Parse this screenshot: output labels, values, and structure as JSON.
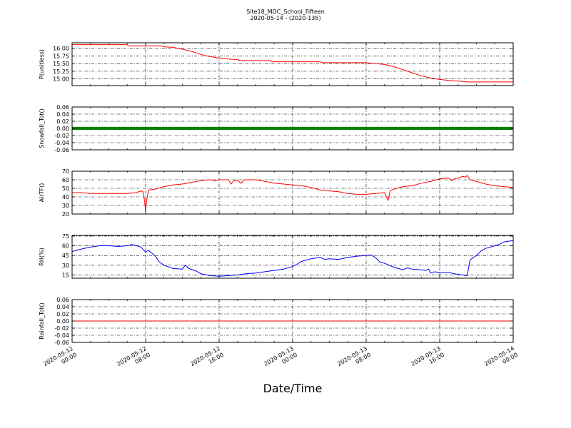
{
  "figure": {
    "title": "Site18_MDC_School_Fifteen",
    "subtitle": "2020-05-14 - (2020-135)",
    "xlabel": "Date/Time"
  },
  "chart_data": [
    {
      "type": "line",
      "ylabel": "P(unitless)",
      "color": "#ff0000",
      "xlim_hours": [
        0,
        48
      ],
      "ylim": [
        14.78,
        16.18
      ],
      "yticks": [
        15.0,
        15.25,
        15.5,
        15.75,
        16.0
      ],
      "ytick_labels": [
        "15.00",
        "15.25",
        "15.50",
        "15.75",
        "16.00"
      ],
      "points": [
        [
          0,
          16.12
        ],
        [
          6,
          16.12
        ],
        [
          6.1,
          16.08
        ],
        [
          9.7,
          16.08
        ],
        [
          10,
          16.05
        ],
        [
          11,
          16.03
        ],
        [
          12,
          15.97
        ],
        [
          13,
          15.9
        ],
        [
          14,
          15.8
        ],
        [
          15,
          15.73
        ],
        [
          16,
          15.68
        ],
        [
          17,
          15.65
        ],
        [
          18,
          15.63
        ],
        [
          18.3,
          15.6
        ],
        [
          21.5,
          15.6
        ],
        [
          21.8,
          15.56
        ],
        [
          27,
          15.56
        ],
        [
          27.3,
          15.53
        ],
        [
          32,
          15.53
        ],
        [
          33,
          15.5
        ],
        [
          34,
          15.47
        ],
        [
          35,
          15.4
        ],
        [
          36,
          15.3
        ],
        [
          37,
          15.2
        ],
        [
          38,
          15.1
        ],
        [
          39,
          15.03
        ],
        [
          40,
          14.98
        ],
        [
          41,
          14.95
        ],
        [
          42,
          14.93
        ],
        [
          43,
          14.9
        ],
        [
          48,
          14.9
        ]
      ]
    },
    {
      "type": "scatter",
      "ylabel": "Snowfall_Tot()",
      "color": "#008000",
      "xlim_hours": [
        0,
        48
      ],
      "ylim": [
        -0.06,
        0.06
      ],
      "yticks": [
        -0.06,
        -0.04,
        -0.02,
        0.0,
        0.02,
        0.04,
        0.06
      ],
      "ytick_labels": [
        "-0.06",
        "-0.04",
        "-0.02",
        "0.00",
        "0.02",
        "0.04",
        "0.06"
      ],
      "constant_value": 0.0,
      "x_step_hours": 0.1667
    },
    {
      "type": "line",
      "ylabel": "AirTF()",
      "color": "#ff0000",
      "xlim_hours": [
        0,
        48
      ],
      "ylim": [
        20,
        70
      ],
      "yticks": [
        20,
        30,
        40,
        50,
        60,
        70
      ],
      "ytick_labels": [
        "20",
        "30",
        "40",
        "50",
        "60",
        "70"
      ],
      "points": [
        [
          0,
          45
        ],
        [
          1,
          45
        ],
        [
          2,
          44
        ],
        [
          3,
          44
        ],
        [
          4,
          44
        ],
        [
          5,
          44
        ],
        [
          6,
          44
        ],
        [
          7,
          45
        ],
        [
          7.5,
          47
        ],
        [
          7.7,
          46
        ],
        [
          7.9,
          35
        ],
        [
          8,
          22
        ],
        [
          8.1,
          35
        ],
        [
          8.3,
          48
        ],
        [
          9,
          49
        ],
        [
          10,
          52
        ],
        [
          11,
          54
        ],
        [
          12,
          55
        ],
        [
          13,
          57
        ],
        [
          14,
          59
        ],
        [
          15,
          60
        ],
        [
          15.5,
          59
        ],
        [
          16,
          60
        ],
        [
          17,
          60
        ],
        [
          17.3,
          55
        ],
        [
          17.6,
          59
        ],
        [
          18,
          59
        ],
        [
          18.4,
          56
        ],
        [
          18.7,
          60
        ],
        [
          19,
          60
        ],
        [
          20,
          60
        ],
        [
          21,
          58
        ],
        [
          22,
          56
        ],
        [
          23,
          55
        ],
        [
          24,
          54
        ],
        [
          25,
          53
        ],
        [
          26,
          51
        ],
        [
          27,
          48
        ],
        [
          28,
          47
        ],
        [
          29,
          46
        ],
        [
          30,
          44
        ],
        [
          31,
          43
        ],
        [
          32,
          43
        ],
        [
          33,
          44
        ],
        [
          34,
          45
        ],
        [
          34.2,
          40
        ],
        [
          34.4,
          36
        ],
        [
          34.6,
          47
        ],
        [
          35,
          49
        ],
        [
          36,
          52
        ],
        [
          37,
          53
        ],
        [
          38,
          56
        ],
        [
          39,
          58
        ],
        [
          40,
          61
        ],
        [
          41,
          62
        ],
        [
          41.3,
          59
        ],
        [
          41.6,
          61
        ],
        [
          42,
          62
        ],
        [
          42.5,
          64
        ],
        [
          42.8,
          63
        ],
        [
          43,
          65
        ],
        [
          43.3,
          60
        ],
        [
          44,
          58
        ],
        [
          45,
          55
        ],
        [
          46,
          53
        ],
        [
          47,
          52
        ],
        [
          48,
          51
        ]
      ]
    },
    {
      "type": "line",
      "ylabel": "RH(%)",
      "color": "#0000ff",
      "xlim_hours": [
        0,
        48
      ],
      "ylim": [
        10,
        76
      ],
      "yticks": [
        15,
        30,
        45,
        60,
        75
      ],
      "ytick_labels": [
        "15",
        "30",
        "45",
        "60",
        "75"
      ],
      "points": [
        [
          0,
          51
        ],
        [
          1,
          55
        ],
        [
          2,
          58
        ],
        [
          3,
          60
        ],
        [
          4,
          60
        ],
        [
          5,
          59
        ],
        [
          6,
          60
        ],
        [
          6.5,
          62
        ],
        [
          7,
          60
        ],
        [
          7.5,
          58
        ],
        [
          8,
          50
        ],
        [
          8.3,
          53
        ],
        [
          9,
          45
        ],
        [
          9.5,
          35
        ],
        [
          10,
          30
        ],
        [
          11,
          25
        ],
        [
          12,
          24
        ],
        [
          12.3,
          30
        ],
        [
          12.7,
          25
        ],
        [
          13.5,
          21
        ],
        [
          14,
          17
        ],
        [
          15,
          14
        ],
        [
          16,
          13
        ],
        [
          17,
          14
        ],
        [
          18,
          15
        ],
        [
          19,
          17
        ],
        [
          20,
          18
        ],
        [
          21,
          20
        ],
        [
          22,
          22
        ],
        [
          23,
          24
        ],
        [
          24,
          28
        ],
        [
          24.5,
          32
        ],
        [
          25,
          36
        ],
        [
          26,
          40
        ],
        [
          27,
          42
        ],
        [
          27.5,
          39
        ],
        [
          28,
          40
        ],
        [
          29,
          39
        ],
        [
          30,
          42
        ],
        [
          31,
          44
        ],
        [
          32,
          45
        ],
        [
          32.5,
          46
        ],
        [
          33,
          42
        ],
        [
          33.5,
          35
        ],
        [
          34,
          33
        ],
        [
          35,
          27
        ],
        [
          35.5,
          25
        ],
        [
          36,
          23
        ],
        [
          36.5,
          26
        ],
        [
          37,
          24
        ],
        [
          38,
          23
        ],
        [
          38.5,
          22
        ],
        [
          38.8,
          24
        ],
        [
          39,
          18
        ],
        [
          39.5,
          20
        ],
        [
          40,
          18
        ],
        [
          41,
          19
        ],
        [
          41.5,
          17
        ],
        [
          42,
          16
        ],
        [
          42.5,
          15
        ],
        [
          43,
          14
        ],
        [
          43.3,
          38
        ],
        [
          44,
          45
        ],
        [
          44.5,
          52
        ],
        [
          45,
          56
        ],
        [
          45.5,
          58
        ],
        [
          46,
          60
        ],
        [
          46.5,
          62
        ],
        [
          47,
          66
        ],
        [
          48,
          68
        ]
      ]
    },
    {
      "type": "line",
      "ylabel": "Rainfall_Tot()",
      "color": "#ff0000",
      "xlim_hours": [
        0,
        48
      ],
      "ylim": [
        -0.06,
        0.06
      ],
      "yticks": [
        -0.06,
        -0.04,
        -0.02,
        0.0,
        0.02,
        0.04,
        0.06
      ],
      "ytick_labels": [
        "-0.06",
        "-0.04",
        "-0.02",
        "0.00",
        "0.02",
        "0.04",
        "0.06"
      ],
      "points": [
        [
          0,
          0
        ],
        [
          48,
          0
        ]
      ]
    }
  ],
  "x_axis": {
    "grid": "dash-dot",
    "major_tick_hours": [
      0,
      8,
      16,
      24,
      32,
      40,
      48
    ],
    "tick_labels": [
      [
        "2020-05-12",
        "00:00"
      ],
      [
        "2020-05-12",
        "08:00"
      ],
      [
        "2020-05-12",
        "16:00"
      ],
      [
        "2020-05-13",
        "00:00"
      ],
      [
        "2020-05-13",
        "08:00"
      ],
      [
        "2020-05-13",
        "16:00"
      ],
      [
        "2020-05-14",
        "00:00"
      ]
    ]
  }
}
